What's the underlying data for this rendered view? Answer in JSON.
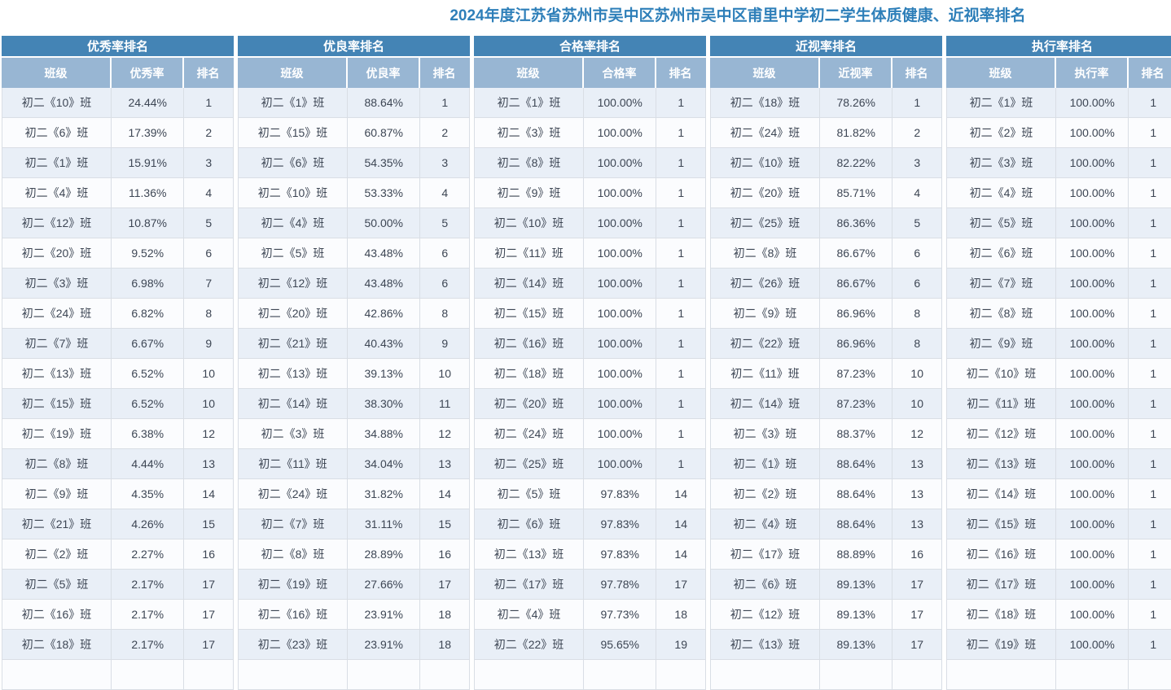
{
  "title": "2024年度江苏省苏州市吴中区苏州市吴中区甫里中学初二学生体质健康、近视率排名",
  "colors": {
    "title": "#2e7fb9",
    "group_header_bg": "#4484b5",
    "col_header_bg": "#98b6d3",
    "row_odd_bg": "#e9eff7",
    "row_even_bg": "#fbfcfe",
    "border": "#d9dee5",
    "cell_text": "#3d4654"
  },
  "tables": [
    {
      "name": "优秀率排名",
      "columns": [
        "班级",
        "优秀率",
        "排名"
      ],
      "partial_next_row": true,
      "rows": [
        [
          "初二《10》班",
          "24.44%",
          "1"
        ],
        [
          "初二《6》班",
          "17.39%",
          "2"
        ],
        [
          "初二《1》班",
          "15.91%",
          "3"
        ],
        [
          "初二《4》班",
          "11.36%",
          "4"
        ],
        [
          "初二《12》班",
          "10.87%",
          "5"
        ],
        [
          "初二《20》班",
          "9.52%",
          "6"
        ],
        [
          "初二《3》班",
          "6.98%",
          "7"
        ],
        [
          "初二《24》班",
          "6.82%",
          "8"
        ],
        [
          "初二《7》班",
          "6.67%",
          "9"
        ],
        [
          "初二《13》班",
          "6.52%",
          "10"
        ],
        [
          "初二《15》班",
          "6.52%",
          "10"
        ],
        [
          "初二《19》班",
          "6.38%",
          "12"
        ],
        [
          "初二《8》班",
          "4.44%",
          "13"
        ],
        [
          "初二《9》班",
          "4.35%",
          "14"
        ],
        [
          "初二《21》班",
          "4.26%",
          "15"
        ],
        [
          "初二《2》班",
          "2.27%",
          "16"
        ],
        [
          "初二《5》班",
          "2.17%",
          "17"
        ],
        [
          "初二《16》班",
          "2.17%",
          "17"
        ],
        [
          "初二《18》班",
          "2.17%",
          "17"
        ]
      ]
    },
    {
      "name": "优良率排名",
      "columns": [
        "班级",
        "优良率",
        "排名"
      ],
      "partial_next_row": true,
      "rows": [
        [
          "初二《1》班",
          "88.64%",
          "1"
        ],
        [
          "初二《15》班",
          "60.87%",
          "2"
        ],
        [
          "初二《6》班",
          "54.35%",
          "3"
        ],
        [
          "初二《10》班",
          "53.33%",
          "4"
        ],
        [
          "初二《4》班",
          "50.00%",
          "5"
        ],
        [
          "初二《5》班",
          "43.48%",
          "6"
        ],
        [
          "初二《12》班",
          "43.48%",
          "6"
        ],
        [
          "初二《20》班",
          "42.86%",
          "8"
        ],
        [
          "初二《21》班",
          "40.43%",
          "9"
        ],
        [
          "初二《13》班",
          "39.13%",
          "10"
        ],
        [
          "初二《14》班",
          "38.30%",
          "11"
        ],
        [
          "初二《3》班",
          "34.88%",
          "12"
        ],
        [
          "初二《11》班",
          "34.04%",
          "13"
        ],
        [
          "初二《24》班",
          "31.82%",
          "14"
        ],
        [
          "初二《7》班",
          "31.11%",
          "15"
        ],
        [
          "初二《8》班",
          "28.89%",
          "16"
        ],
        [
          "初二《19》班",
          "27.66%",
          "17"
        ],
        [
          "初二《16》班",
          "23.91%",
          "18"
        ],
        [
          "初二《23》班",
          "23.91%",
          "18"
        ]
      ]
    },
    {
      "name": "合格率排名",
      "columns": [
        "班级",
        "合格率",
        "排名"
      ],
      "partial_next_row": true,
      "rows": [
        [
          "初二《1》班",
          "100.00%",
          "1"
        ],
        [
          "初二《3》班",
          "100.00%",
          "1"
        ],
        [
          "初二《8》班",
          "100.00%",
          "1"
        ],
        [
          "初二《9》班",
          "100.00%",
          "1"
        ],
        [
          "初二《10》班",
          "100.00%",
          "1"
        ],
        [
          "初二《11》班",
          "100.00%",
          "1"
        ],
        [
          "初二《14》班",
          "100.00%",
          "1"
        ],
        [
          "初二《15》班",
          "100.00%",
          "1"
        ],
        [
          "初二《16》班",
          "100.00%",
          "1"
        ],
        [
          "初二《18》班",
          "100.00%",
          "1"
        ],
        [
          "初二《20》班",
          "100.00%",
          "1"
        ],
        [
          "初二《24》班",
          "100.00%",
          "1"
        ],
        [
          "初二《25》班",
          "100.00%",
          "1"
        ],
        [
          "初二《5》班",
          "97.83%",
          "14"
        ],
        [
          "初二《6》班",
          "97.83%",
          "14"
        ],
        [
          "初二《13》班",
          "97.83%",
          "14"
        ],
        [
          "初二《17》班",
          "97.78%",
          "17"
        ],
        [
          "初二《4》班",
          "97.73%",
          "18"
        ],
        [
          "初二《22》班",
          "95.65%",
          "19"
        ]
      ]
    },
    {
      "name": "近视率排名",
      "columns": [
        "班级",
        "近视率",
        "排名"
      ],
      "partial_next_row": true,
      "rows": [
        [
          "初二《18》班",
          "78.26%",
          "1"
        ],
        [
          "初二《24》班",
          "81.82%",
          "2"
        ],
        [
          "初二《10》班",
          "82.22%",
          "3"
        ],
        [
          "初二《20》班",
          "85.71%",
          "4"
        ],
        [
          "初二《25》班",
          "86.36%",
          "5"
        ],
        [
          "初二《8》班",
          "86.67%",
          "6"
        ],
        [
          "初二《26》班",
          "86.67%",
          "6"
        ],
        [
          "初二《9》班",
          "86.96%",
          "8"
        ],
        [
          "初二《22》班",
          "86.96%",
          "8"
        ],
        [
          "初二《11》班",
          "87.23%",
          "10"
        ],
        [
          "初二《14》班",
          "87.23%",
          "10"
        ],
        [
          "初二《3》班",
          "88.37%",
          "12"
        ],
        [
          "初二《1》班",
          "88.64%",
          "13"
        ],
        [
          "初二《2》班",
          "88.64%",
          "13"
        ],
        [
          "初二《4》班",
          "88.64%",
          "13"
        ],
        [
          "初二《17》班",
          "88.89%",
          "16"
        ],
        [
          "初二《6》班",
          "89.13%",
          "17"
        ],
        [
          "初二《12》班",
          "89.13%",
          "17"
        ],
        [
          "初二《13》班",
          "89.13%",
          "17"
        ]
      ]
    },
    {
      "name": "执行率排名",
      "columns": [
        "班级",
        "执行率",
        "排名"
      ],
      "partial_next_row": true,
      "rows": [
        [
          "初二《1》班",
          "100.00%",
          "1"
        ],
        [
          "初二《2》班",
          "100.00%",
          "1"
        ],
        [
          "初二《3》班",
          "100.00%",
          "1"
        ],
        [
          "初二《4》班",
          "100.00%",
          "1"
        ],
        [
          "初二《5》班",
          "100.00%",
          "1"
        ],
        [
          "初二《6》班",
          "100.00%",
          "1"
        ],
        [
          "初二《7》班",
          "100.00%",
          "1"
        ],
        [
          "初二《8》班",
          "100.00%",
          "1"
        ],
        [
          "初二《9》班",
          "100.00%",
          "1"
        ],
        [
          "初二《10》班",
          "100.00%",
          "1"
        ],
        [
          "初二《11》班",
          "100.00%",
          "1"
        ],
        [
          "初二《12》班",
          "100.00%",
          "1"
        ],
        [
          "初二《13》班",
          "100.00%",
          "1"
        ],
        [
          "初二《14》班",
          "100.00%",
          "1"
        ],
        [
          "初二《15》班",
          "100.00%",
          "1"
        ],
        [
          "初二《16》班",
          "100.00%",
          "1"
        ],
        [
          "初二《17》班",
          "100.00%",
          "1"
        ],
        [
          "初二《18》班",
          "100.00%",
          "1"
        ],
        [
          "初二《19》班",
          "100.00%",
          "1"
        ]
      ]
    }
  ]
}
